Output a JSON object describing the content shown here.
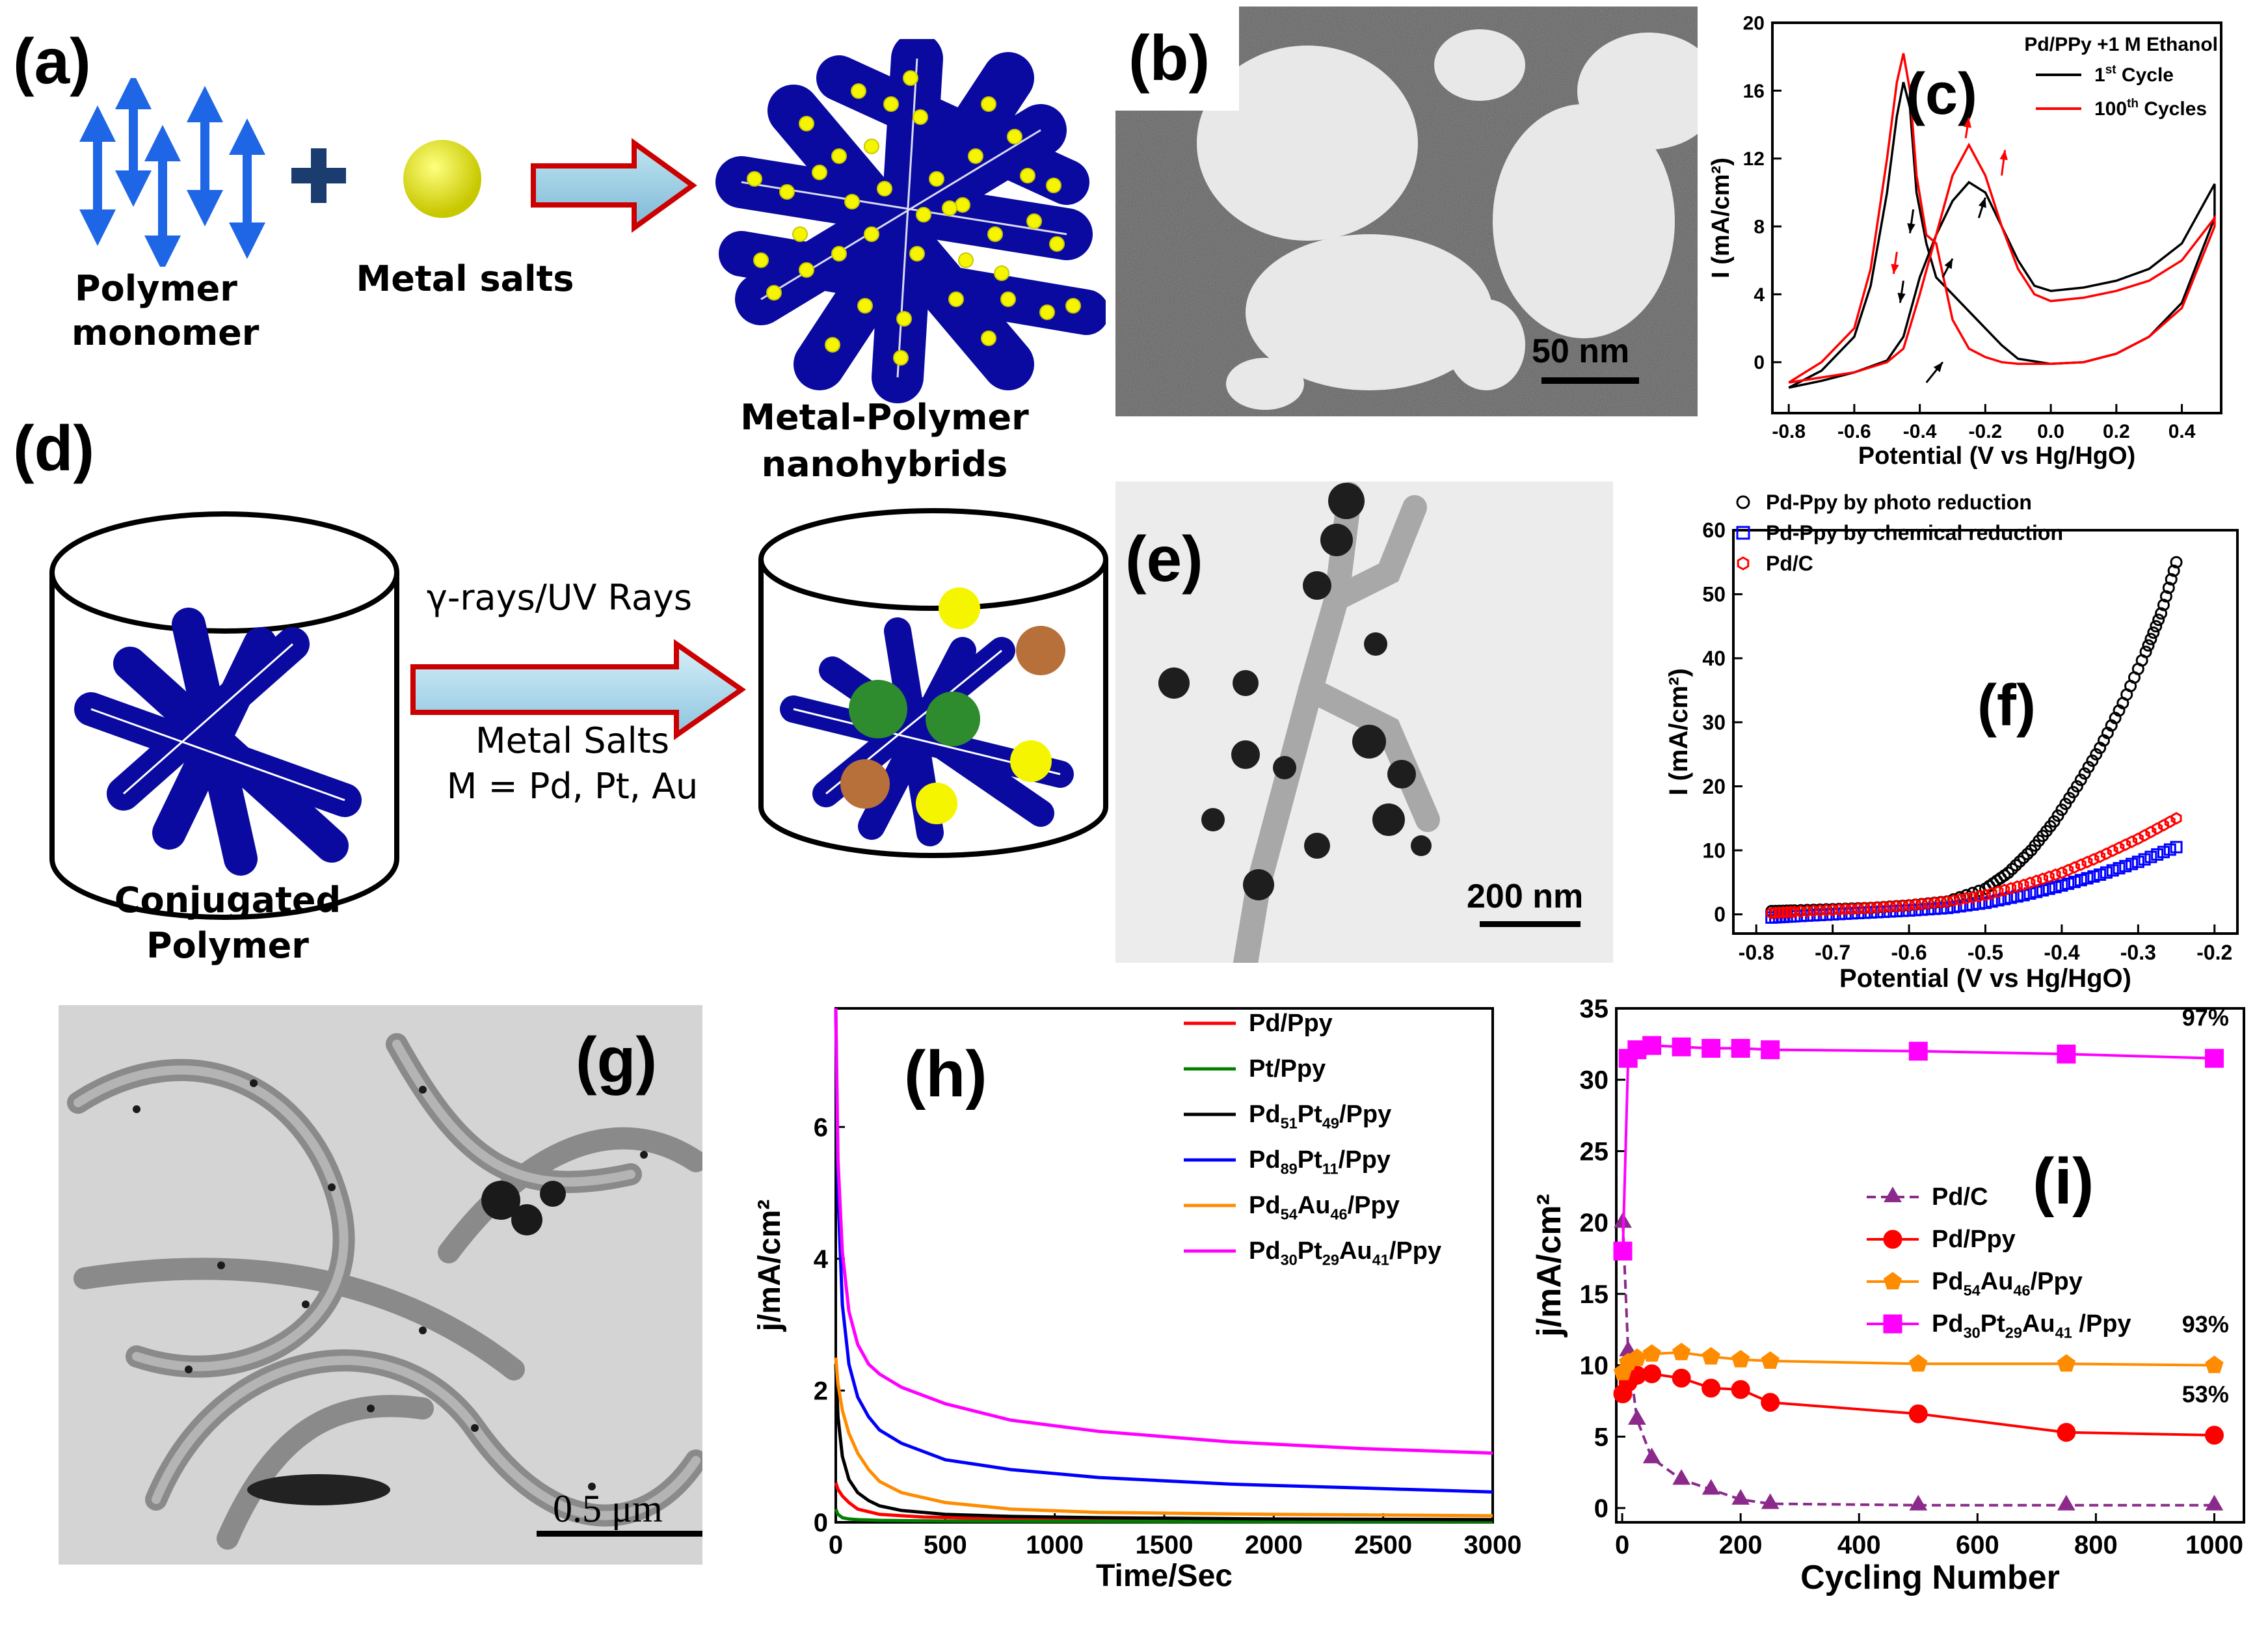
{
  "panels": {
    "a": {
      "label": "(a)",
      "monomer": [
        "Polymer",
        "monomer"
      ],
      "salt": "Metal salts",
      "product": [
        "Metal-Polymer",
        "nanohybrids"
      ]
    },
    "b": {
      "label": "(b)",
      "scale": "50 nm"
    },
    "d": {
      "label": "(d)",
      "arrow_top": "γ-rays/UV Rays",
      "arrow_bottom": [
        "Metal Salts",
        "M = Pd, Pt, Au"
      ],
      "left_caption": [
        "Conjugated",
        "Polymer"
      ]
    },
    "e": {
      "label": "(e)",
      "scale": "200 nm"
    },
    "g": {
      "label": "(g)",
      "scale": "0.5 μm"
    }
  },
  "colors": {
    "polymer": "#0a0aa0",
    "metal": "#f5f500",
    "red": "#ff0000",
    "black": "#000000",
    "blue": "#0000ff",
    "green": "#008000",
    "orange": "#ff8c00",
    "magenta": "#ff00ff",
    "purple": "#8b2a8b"
  },
  "chart_data": [
    {
      "id": "c",
      "label": "(c)",
      "type": "line",
      "xlabel": "Potential (V vs Hg/HgO)",
      "ylabel": "I (mA/cm²)",
      "xlim": [
        -0.85,
        0.52
      ],
      "ylim": [
        -3,
        20
      ],
      "xticks": [
        -0.8,
        -0.6,
        -0.4,
        -0.2,
        0.0,
        0.2,
        0.4
      ],
      "xtick_labels": [
        "-0.8",
        "-0.6",
        "-0.4",
        "-0.2",
        "0.0",
        "0.2",
        "0.4"
      ],
      "yticks": [
        0,
        4,
        8,
        12,
        16,
        20
      ],
      "legend_title": "Pd/PPy +1 M Ethanol",
      "series": [
        {
          "name": "1st Cycle",
          "name_parts": [
            "1",
            "st",
            " Cycle"
          ],
          "color": "black",
          "x": [
            -0.8,
            -0.7,
            -0.6,
            -0.55,
            -0.5,
            -0.47,
            -0.45,
            -0.43,
            -0.41,
            -0.38,
            -0.35,
            -0.3,
            -0.25,
            -0.2,
            -0.15,
            -0.1,
            0.0,
            0.1,
            0.2,
            0.3,
            0.4,
            0.5,
            0.5,
            0.4,
            0.3,
            0.2,
            0.1,
            0.0,
            -0.05,
            -0.1,
            -0.15,
            -0.2,
            -0.25,
            -0.3,
            -0.35,
            -0.4,
            -0.45,
            -0.5,
            -0.6,
            -0.7,
            -0.8
          ],
          "y": [
            -1.5,
            -0.5,
            1.5,
            4.5,
            10,
            14.5,
            16.5,
            15,
            10,
            7,
            5,
            4,
            3,
            2,
            1,
            0.2,
            -0.1,
            0,
            0.5,
            1.5,
            3.5,
            8.5,
            10.5,
            7,
            5.5,
            4.8,
            4.4,
            4.2,
            4.5,
            6,
            8,
            10,
            10.6,
            9.5,
            7.5,
            5,
            1.5,
            0.1,
            -0.6,
            -1.1,
            -1.5
          ]
        },
        {
          "name": "100th Cycles",
          "name_parts": [
            "100",
            "th",
            " Cycles"
          ],
          "color": "red",
          "x": [
            -0.8,
            -0.7,
            -0.6,
            -0.55,
            -0.5,
            -0.47,
            -0.45,
            -0.43,
            -0.41,
            -0.38,
            -0.35,
            -0.3,
            -0.25,
            -0.2,
            -0.15,
            -0.1,
            0.0,
            0.1,
            0.2,
            0.3,
            0.4,
            0.5,
            0.5,
            0.4,
            0.3,
            0.2,
            0.1,
            0.0,
            -0.05,
            -0.1,
            -0.15,
            -0.2,
            -0.25,
            -0.3,
            -0.35,
            -0.4,
            -0.45,
            -0.5,
            -0.6,
            -0.7,
            -0.8
          ],
          "y": [
            -1.2,
            0,
            2,
            5.5,
            12,
            16.5,
            18.2,
            16,
            11,
            7.5,
            7,
            2.5,
            0.8,
            0.3,
            0,
            -0.1,
            -0.1,
            0,
            0.5,
            1.5,
            3.2,
            8.0,
            8.5,
            6,
            4.8,
            4.2,
            3.8,
            3.6,
            4.0,
            5.5,
            8,
            11,
            12.8,
            11,
            7.5,
            4,
            0.8,
            0,
            -0.6,
            -0.9,
            -1.2
          ]
        }
      ]
    },
    {
      "id": "f",
      "label": "(f)",
      "type": "scatter",
      "xlabel": "Potential (V vs Hg/HgO)",
      "ylabel": "I (mA/cm²)",
      "xlim": [
        -0.83,
        -0.17
      ],
      "ylim": [
        -3,
        60
      ],
      "xticks": [
        -0.8,
        -0.7,
        -0.6,
        -0.5,
        -0.4,
        -0.3,
        -0.2
      ],
      "xtick_labels": [
        "-0.8",
        "-0.7",
        "-0.6",
        "-0.5",
        "-0.4",
        "-0.3",
        "-0.2"
      ],
      "yticks": [
        0,
        10,
        20,
        30,
        40,
        50,
        60
      ],
      "series": [
        {
          "name": "Pd-Ppy by photo reduction",
          "marker": "circle",
          "color": "black",
          "x": [
            -0.78,
            -0.75,
            -0.7,
            -0.65,
            -0.6,
            -0.55,
            -0.5,
            -0.47,
            -0.44,
            -0.41,
            -0.38,
            -0.35,
            -0.32,
            -0.29,
            -0.27,
            -0.25
          ],
          "y": [
            0.5,
            0.6,
            0.8,
            1.0,
            1.4,
            2.0,
            4.0,
            6.5,
            10,
            14.5,
            20,
            26,
            33,
            41,
            47,
            55
          ]
        },
        {
          "name": "Pd-Ppy by chemical reduction",
          "marker": "square",
          "color": "blue",
          "x": [
            -0.78,
            -0.75,
            -0.7,
            -0.65,
            -0.6,
            -0.55,
            -0.5,
            -0.45,
            -0.4,
            -0.35,
            -0.3,
            -0.25
          ],
          "y": [
            -0.5,
            -0.3,
            0,
            0.3,
            0.6,
            1.0,
            1.8,
            3.0,
            4.5,
            6.2,
            8.2,
            10.5
          ]
        },
        {
          "name": "Pd/C",
          "marker": "hexagon",
          "color": "red",
          "x": [
            -0.78,
            -0.75,
            -0.7,
            -0.65,
            -0.6,
            -0.55,
            -0.5,
            -0.45,
            -0.4,
            -0.35,
            -0.3,
            -0.25
          ],
          "y": [
            0.2,
            0.4,
            0.7,
            1.0,
            1.4,
            2.0,
            3.0,
            4.6,
            6.5,
            9.0,
            11.8,
            15
          ]
        }
      ]
    },
    {
      "id": "h",
      "label": "(h)",
      "type": "line",
      "xlabel": "Time/Sec",
      "ylabel": "j/mA/cm²",
      "xlim": [
        0,
        3000
      ],
      "ylim": [
        0,
        7.8
      ],
      "xticks": [
        0,
        500,
        1000,
        1500,
        2000,
        2500,
        3000
      ],
      "xtick_labels": [
        "0",
        "500",
        "1000",
        "1500",
        "2000",
        "2500",
        "3000"
      ],
      "yticks": [
        0,
        2,
        4,
        6
      ],
      "series": [
        {
          "name": "Pd/Ppy",
          "name_parts": [
            "Pd/Ppy"
          ],
          "color": "red",
          "x": [
            0,
            10,
            30,
            60,
            100,
            200,
            400,
            700,
            1000,
            1500,
            2000,
            2500,
            3000
          ],
          "y": [
            0.6,
            0.5,
            0.4,
            0.3,
            0.2,
            0.12,
            0.08,
            0.06,
            0.05,
            0.04,
            0.03,
            0.03,
            0.02
          ]
        },
        {
          "name": "Pt/Ppy",
          "name_parts": [
            "Pt/Ppy"
          ],
          "color": "green",
          "x": [
            0,
            10,
            30,
            60,
            100,
            200,
            500,
            1000,
            2000,
            3000
          ],
          "y": [
            0.2,
            0.12,
            0.07,
            0.05,
            0.04,
            0.03,
            0.02,
            0.015,
            0.01,
            0.01
          ]
        },
        {
          "name": "Pd51Pt49/Ppy",
          "name_parts": [
            "Pd",
            "51",
            "Pt",
            "49",
            "/Ppy"
          ],
          "color": "black",
          "x": [
            0,
            10,
            30,
            60,
            100,
            150,
            200,
            300,
            500,
            800,
            1200,
            2000,
            3000
          ],
          "y": [
            2.4,
            1.6,
            1.0,
            0.65,
            0.45,
            0.33,
            0.25,
            0.18,
            0.12,
            0.09,
            0.07,
            0.05,
            0.04
          ]
        },
        {
          "name": "Pd89Pt11/Ppy",
          "name_parts": [
            "Pd",
            "89",
            "Pt",
            "11",
            "/Ppy"
          ],
          "color": "blue",
          "x": [
            0,
            10,
            30,
            60,
            100,
            150,
            200,
            300,
            500,
            800,
            1200,
            1800,
            2400,
            3000
          ],
          "y": [
            7.8,
            5.0,
            3.3,
            2.4,
            1.9,
            1.6,
            1.4,
            1.2,
            0.95,
            0.8,
            0.68,
            0.58,
            0.52,
            0.46
          ]
        },
        {
          "name": "Pd54Au46/Ppy",
          "name_parts": [
            "Pd",
            "54",
            "Au",
            "46",
            "/Ppy"
          ],
          "color": "#ff8c00",
          "x": [
            0,
            10,
            30,
            60,
            100,
            150,
            200,
            300,
            500,
            800,
            1200,
            2000,
            3000
          ],
          "y": [
            2.5,
            2.1,
            1.7,
            1.35,
            1.05,
            0.8,
            0.62,
            0.45,
            0.3,
            0.2,
            0.15,
            0.12,
            0.1
          ]
        },
        {
          "name": "Pd30Pt29Au41/Ppy",
          "name_parts": [
            "Pd",
            "30",
            "Pt",
            "29",
            "Au",
            "41",
            "/Ppy"
          ],
          "color": "#ff00ff",
          "x": [
            0,
            10,
            30,
            60,
            100,
            150,
            200,
            300,
            500,
            800,
            1200,
            1800,
            2400,
            3000
          ],
          "y": [
            7.8,
            5.5,
            4.1,
            3.2,
            2.7,
            2.4,
            2.25,
            2.05,
            1.8,
            1.55,
            1.38,
            1.22,
            1.12,
            1.05
          ]
        }
      ]
    },
    {
      "id": "i",
      "label": "(i)",
      "type": "line",
      "xlabel": "Cycling Number",
      "ylabel": "j/mA/cm²",
      "xlim": [
        -10,
        1050
      ],
      "ylim": [
        -1,
        35
      ],
      "xticks": [
        0,
        200,
        400,
        600,
        800,
        1000
      ],
      "xtick_labels": [
        "0",
        "200",
        "400",
        "600",
        "800",
        "1000"
      ],
      "yticks": [
        0,
        5,
        10,
        15,
        20,
        25,
        30,
        35
      ],
      "series": [
        {
          "name": "Pd/C",
          "name_parts": [
            "Pd/C"
          ],
          "marker": "triangle",
          "color": "#8b2a8b",
          "dashed": true,
          "x": [
            1,
            10,
            25,
            50,
            100,
            150,
            200,
            250,
            500,
            750,
            1000
          ],
          "y": [
            20,
            11,
            6.2,
            3.5,
            2.0,
            1.3,
            0.6,
            0.3,
            0.2,
            0.2,
            0.2
          ]
        },
        {
          "name": "Pd/Ppy",
          "name_parts": [
            "Pd/Ppy"
          ],
          "marker": "circle",
          "color": "red",
          "x": [
            1,
            10,
            25,
            50,
            100,
            150,
            200,
            250,
            500,
            750,
            1000
          ],
          "y": [
            8.0,
            8.8,
            9.3,
            9.4,
            9.1,
            8.4,
            8.3,
            7.4,
            6.6,
            5.3,
            5.1
          ]
        },
        {
          "name": "Pd54Au46/Ppy",
          "name_parts": [
            "Pd",
            "54",
            "Au",
            "46",
            "/Ppy"
          ],
          "marker": "pentagon",
          "color": "#ff8c00",
          "x": [
            1,
            10,
            25,
            50,
            100,
            150,
            200,
            250,
            500,
            750,
            1000
          ],
          "y": [
            9.5,
            10.2,
            10.5,
            10.8,
            10.9,
            10.6,
            10.4,
            10.3,
            10.1,
            10.1,
            10.0
          ]
        },
        {
          "name": "Pd30Pt29Au41/Ppy",
          "name_parts": [
            "Pd",
            "30",
            "Pt",
            "29",
            "Au",
            "41",
            " /Ppy"
          ],
          "marker": "square",
          "color": "#ff00ff",
          "x": [
            1,
            10,
            25,
            50,
            100,
            150,
            200,
            250,
            500,
            750,
            1000
          ],
          "y": [
            18,
            31.5,
            32.1,
            32.4,
            32.3,
            32.2,
            32.2,
            32.1,
            32.0,
            31.8,
            31.5
          ]
        }
      ],
      "annotations": [
        {
          "text": "97%",
          "x": 985,
          "y": 33.8
        },
        {
          "text": "93%",
          "x": 985,
          "y": 12.3
        },
        {
          "text": "53%",
          "x": 985,
          "y": 7.4
        }
      ]
    }
  ]
}
